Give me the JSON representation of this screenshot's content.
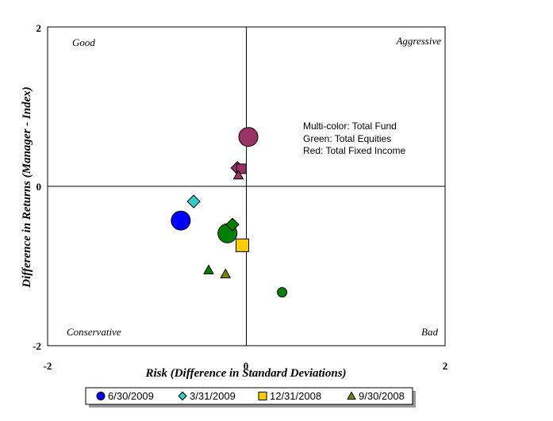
{
  "chart_data": {
    "type": "scatter",
    "xlabel": "Risk (Difference in Standard Deviations)",
    "ylabel": "Difference in Returns (Manager - Index)",
    "xlim": [
      -2,
      2
    ],
    "ylim": [
      -2,
      2
    ],
    "x_ticks": [
      "-2",
      "0",
      "2"
    ],
    "y_ticks": [
      "2",
      "0",
      "-2"
    ],
    "grid": false,
    "quadrant_labels": {
      "top_left": "Good",
      "top_right": "Aggressive",
      "bottom_left": "Conservative",
      "bottom_right": "Bad"
    },
    "notes": [
      "Multi-color: Total Fund",
      "Green: Total Equities",
      "Red: Total Fixed Income"
    ],
    "legend_position": "bottom",
    "series": [
      {
        "name": "6/30/2009",
        "marker": "circle",
        "legend_color": "#0000ff",
        "points": [
          {
            "x": -0.66,
            "y": -0.43,
            "color": "#0000ff",
            "size": "large"
          },
          {
            "x": -0.19,
            "y": -0.59,
            "color": "#008000",
            "size": "large"
          },
          {
            "x": 0.36,
            "y": -1.33,
            "color": "#008000",
            "size": "small"
          },
          {
            "x": 0.02,
            "y": 0.62,
            "color": "#993366",
            "size": "large"
          }
        ]
      },
      {
        "name": "3/31/2009",
        "marker": "diamond",
        "legend_color": "#33cccc",
        "points": [
          {
            "x": -0.53,
            "y": -0.19,
            "color": "#33cccc",
            "size": "medium"
          },
          {
            "x": -0.14,
            "y": -0.48,
            "color": "#008000",
            "size": "medium"
          },
          {
            "x": -0.09,
            "y": 0.23,
            "color": "#993366",
            "size": "medium"
          }
        ]
      },
      {
        "name": "12/31/2008",
        "marker": "square",
        "legend_color": "#ffcc00",
        "points": [
          {
            "x": -0.04,
            "y": -0.74,
            "color": "#ffcc00",
            "size": "medium"
          },
          {
            "x": -0.05,
            "y": 0.22,
            "color": "#993366",
            "size": "small"
          }
        ]
      },
      {
        "name": "9/30/2008",
        "marker": "triangle",
        "legend_color": "#808000",
        "points": [
          {
            "x": -0.38,
            "y": -1.05,
            "color": "#008000",
            "size": "small"
          },
          {
            "x": -0.21,
            "y": -1.1,
            "color": "#808000",
            "size": "small"
          },
          {
            "x": -0.08,
            "y": 0.14,
            "color": "#993366",
            "size": "small"
          }
        ]
      }
    ]
  }
}
